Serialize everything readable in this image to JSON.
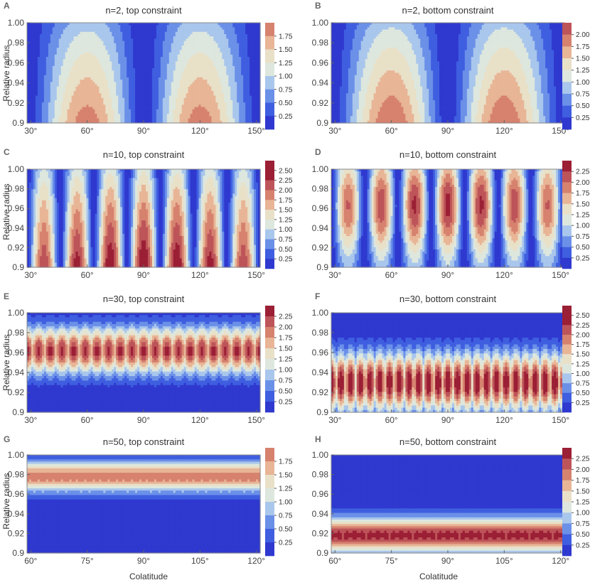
{
  "figure": {
    "ylabel": "Relative radius",
    "xlabel": "Colatitude",
    "palette": [
      "#2f39cf",
      "#3f5ee0",
      "#6b90e8",
      "#a9c6ec",
      "#dde7de",
      "#e9e0c8",
      "#e8b596",
      "#d6826f",
      "#bd5459",
      "#9b1f35"
    ]
  },
  "chart_data": [
    {
      "id": "A",
      "type": "contour",
      "letter": "A",
      "title": "n=2, top constraint",
      "xticks": [
        "30°",
        "60°",
        "90°",
        "120°",
        "150°"
      ],
      "xrange": [
        28,
        152
      ],
      "yticks": [
        "1.00",
        "0.98",
        "0.96",
        "0.94",
        "0.92",
        "0.9"
      ],
      "yrange": [
        0.9,
        1.0
      ],
      "levels": [
        "1.75",
        "1.50",
        "1.25",
        "1.00",
        "0.75",
        "0.50",
        "0.25"
      ],
      "pattern": {
        "kind": "columns",
        "count": 2,
        "radial": "low_to_high",
        "peak_at": "bottom",
        "max": 2.0
      }
    },
    {
      "id": "B",
      "type": "contour",
      "letter": "B",
      "title": "n=2, bottom constraint",
      "xticks": [
        "30°",
        "60°",
        "90°",
        "120°",
        "150°"
      ],
      "xrange": [
        28,
        152
      ],
      "yticks": [
        "1.00",
        "0.98",
        "0.96",
        "0.94",
        "0.92",
        "0.9"
      ],
      "yrange": [
        0.9,
        1.0
      ],
      "levels": [
        "2.00",
        "1.75",
        "1.50",
        "1.25",
        "1.00",
        "0.75",
        "0.50",
        "0.25"
      ],
      "pattern": {
        "kind": "columns",
        "count": 2,
        "radial": "low_to_high",
        "peak_at": "bottom",
        "max": 2.1
      }
    },
    {
      "id": "C",
      "type": "contour",
      "letter": "C",
      "title": "n=10, top constraint",
      "xticks": [
        "30°",
        "60°",
        "90°",
        "120°",
        "150°"
      ],
      "xrange": [
        28,
        152
      ],
      "yticks": [
        "1.00",
        "0.98",
        "0.96",
        "0.94",
        "0.92",
        "0.9"
      ],
      "yrange": [
        0.9,
        1.0
      ],
      "levels": [
        "2.50",
        "2.25",
        "2.00",
        "1.75",
        "1.50",
        "1.25",
        "1.00",
        "0.75",
        "0.50",
        "0.25"
      ],
      "pattern": {
        "kind": "columns",
        "count": 7,
        "radial": "low_to_high",
        "peak_at": "bottom",
        "max": 2.6
      }
    },
    {
      "id": "D",
      "type": "contour",
      "letter": "D",
      "title": "n=10, bottom constraint",
      "xticks": [
        "30°",
        "60°",
        "90°",
        "120°",
        "150°"
      ],
      "xrange": [
        28,
        152
      ],
      "yticks": [
        "1.00",
        "0.98",
        "0.96",
        "0.94",
        "0.92",
        "0.9"
      ],
      "yrange": [
        0.9,
        1.0
      ],
      "levels": [
        "2.25",
        "2.00",
        "1.75",
        "1.50",
        "1.25",
        "1.00",
        "0.75",
        "0.50",
        "0.25"
      ],
      "pattern": {
        "kind": "columns",
        "count": 7,
        "radial": "bump",
        "center": 0.963,
        "width": 0.05,
        "max": 2.35
      }
    },
    {
      "id": "E",
      "type": "contour",
      "letter": "E",
      "title": "n=30, top constraint",
      "xticks": [
        "30°",
        "60°",
        "90°",
        "120°",
        "150°"
      ],
      "xrange": [
        28,
        152
      ],
      "yticks": [
        "1.00",
        "0.98",
        "0.96",
        "0.94",
        "0.92",
        "0.9"
      ],
      "yrange": [
        0.9,
        1.0
      ],
      "levels": [
        "2.25",
        "2.00",
        "1.75",
        "1.50",
        "1.25",
        "1.00",
        "0.75",
        "0.50",
        "0.25"
      ],
      "pattern": {
        "kind": "band",
        "count": 20,
        "center": 0.962,
        "width": 0.024,
        "max": 2.35,
        "ripple": 0.35
      }
    },
    {
      "id": "F",
      "type": "contour",
      "letter": "F",
      "title": "n=30, bottom constraint",
      "xticks": [
        "30°",
        "60°",
        "90°",
        "120°",
        "150°"
      ],
      "xrange": [
        28,
        152
      ],
      "yticks": [
        "1.00",
        "0.98",
        "0.96",
        "0.94",
        "0.92",
        "0.9"
      ],
      "yrange": [
        0.9,
        1.0
      ],
      "levels": [
        "2.50",
        "2.25",
        "2.00",
        "1.75",
        "1.50",
        "1.25",
        "1.00",
        "0.75",
        "0.50",
        "0.25"
      ],
      "pattern": {
        "kind": "band",
        "count": 24,
        "center": 0.93,
        "width": 0.03,
        "max": 2.6,
        "ripple": 0.45
      }
    },
    {
      "id": "G",
      "type": "contour",
      "letter": "G",
      "title": "n=50, top constraint",
      "xticks": [
        "60°",
        "75°",
        "90°",
        "105°",
        "120°"
      ],
      "xrange": [
        59,
        121
      ],
      "yticks": [
        "1.00",
        "0.98",
        "0.96",
        "0.94",
        "0.92",
        "0.9"
      ],
      "yrange": [
        0.9,
        1.0
      ],
      "levels": [
        "1.75",
        "1.50",
        "1.25",
        "1.00",
        "0.75",
        "0.50",
        "0.25"
      ],
      "pattern": {
        "kind": "band",
        "count": 30,
        "center": 0.978,
        "width": 0.016,
        "max": 1.92,
        "ripple": 0.04
      }
    },
    {
      "id": "H",
      "type": "contour",
      "letter": "H",
      "title": "n=50, bottom constraint",
      "xticks": [
        "60°",
        "75°",
        "90°",
        "105°",
        "120°"
      ],
      "xrange": [
        59,
        121
      ],
      "yticks": [
        "1.00",
        "0.98",
        "0.96",
        "0.94",
        "0.92",
        "0.9"
      ],
      "yrange": [
        0.9,
        1.0
      ],
      "levels": [
        "2.25",
        "2.00",
        "1.75",
        "1.50",
        "1.25",
        "1.00",
        "0.75",
        "0.50",
        "0.25"
      ],
      "pattern": {
        "kind": "band",
        "count": 30,
        "center": 0.918,
        "width": 0.018,
        "max": 2.35,
        "ripple": 0.04
      }
    }
  ]
}
